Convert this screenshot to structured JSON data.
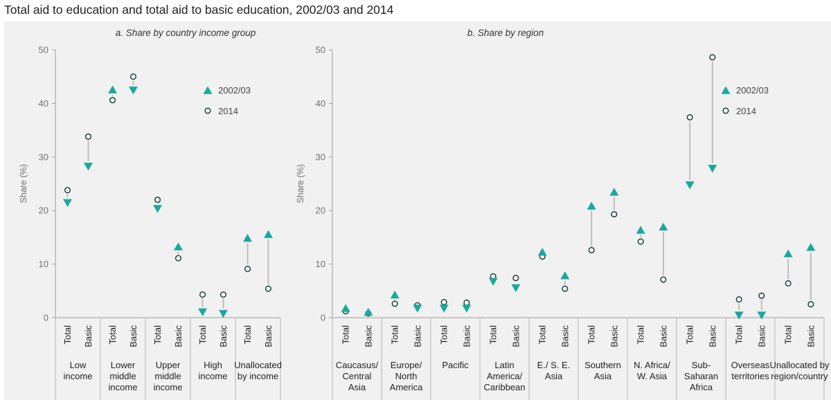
{
  "title": "Total aid to education and total aid to basic education, 2002/03 and 2014",
  "colors": {
    "triangle": "#1aa99c",
    "circle_stroke": "#1c3c3c",
    "arrow": "#bdbdbd",
    "background": "#f1f1f1"
  },
  "chart_data": [
    {
      "type": "scatter",
      "title": "a. Share by country income group",
      "ylabel": "Share (%)",
      "ylim": [
        0,
        50
      ],
      "yticks": [
        0,
        10,
        20,
        30,
        40,
        50
      ],
      "grid": false,
      "legend_placement": "top-right",
      "series": [
        {
          "name": "2002/03",
          "marker": "triangle"
        },
        {
          "name": "2014",
          "marker": "circle"
        }
      ],
      "groups": [
        {
          "label_lines": [
            "Low",
            "income"
          ],
          "categories": [
            {
              "label": "Total",
              "v2002": 21.5,
              "v2014": 23.8
            },
            {
              "label": "Basic",
              "v2002": 28.3,
              "v2014": 33.8
            }
          ]
        },
        {
          "label_lines": [
            "Lower",
            "middle",
            "income"
          ],
          "categories": [
            {
              "label": "Total",
              "v2002": 42.5,
              "v2014": 40.6
            },
            {
              "label": "Basic",
              "v2002": 42.5,
              "v2014": 45.0
            }
          ]
        },
        {
          "label_lines": [
            "Upper",
            "middle",
            "income"
          ],
          "categories": [
            {
              "label": "Total",
              "v2002": 20.4,
              "v2014": 22.0
            },
            {
              "label": "Basic",
              "v2002": 13.2,
              "v2014": 11.1
            }
          ]
        },
        {
          "label_lines": [
            "High",
            "income"
          ],
          "categories": [
            {
              "label": "Total",
              "v2002": 1.1,
              "v2014": 4.3
            },
            {
              "label": "Basic",
              "v2002": 0.8,
              "v2014": 4.3
            }
          ]
        },
        {
          "label_lines": [
            "Unallocated",
            "by income"
          ],
          "categories": [
            {
              "label": "Total",
              "v2002": 14.8,
              "v2014": 9.1
            },
            {
              "label": "Basic",
              "v2002": 15.5,
              "v2014": 5.4
            }
          ]
        }
      ]
    },
    {
      "type": "scatter",
      "title": "b. Share by region",
      "ylabel": "Share (%)",
      "ylim": [
        0,
        50
      ],
      "yticks": [
        0,
        10,
        20,
        30,
        40,
        50
      ],
      "grid": false,
      "legend_placement": "top-right",
      "series": [
        {
          "name": "2002/03",
          "marker": "triangle"
        },
        {
          "name": "2014",
          "marker": "circle"
        }
      ],
      "groups": [
        {
          "label_lines": [
            "Caucasus/",
            "Central",
            "Asia"
          ],
          "categories": [
            {
              "label": "Total",
              "v2002": 1.7,
              "v2014": 1.2
            },
            {
              "label": "Basic",
              "v2002": 1.0,
              "v2014": 0.8
            }
          ]
        },
        {
          "label_lines": [
            "Europe/",
            "North",
            "America"
          ],
          "categories": [
            {
              "label": "Total",
              "v2002": 4.2,
              "v2014": 2.6
            },
            {
              "label": "Basic",
              "v2002": 1.8,
              "v2014": 2.3
            }
          ]
        },
        {
          "label_lines": [
            "Pacific"
          ],
          "categories": [
            {
              "label": "Total",
              "v2002": 1.8,
              "v2014": 2.9
            },
            {
              "label": "Basic",
              "v2002": 1.8,
              "v2014": 2.8
            }
          ]
        },
        {
          "label_lines": [
            "Latin",
            "America/",
            "Caribbean"
          ],
          "categories": [
            {
              "label": "Total",
              "v2002": 6.8,
              "v2014": 7.7
            },
            {
              "label": "Basic",
              "v2002": 5.6,
              "v2014": 7.4
            }
          ]
        },
        {
          "label_lines": [
            "E./ S. E.",
            "Asia"
          ],
          "categories": [
            {
              "label": "Total",
              "v2002": 12.2,
              "v2014": 11.4
            },
            {
              "label": "Basic",
              "v2002": 7.8,
              "v2014": 5.4
            }
          ]
        },
        {
          "label_lines": [
            "Southern",
            "Asia"
          ],
          "categories": [
            {
              "label": "Total",
              "v2002": 20.8,
              "v2014": 12.6
            },
            {
              "label": "Basic",
              "v2002": 23.4,
              "v2014": 19.3
            }
          ]
        },
        {
          "label_lines": [
            "N. Africa/",
            "W. Asia"
          ],
          "categories": [
            {
              "label": "Total",
              "v2002": 16.3,
              "v2014": 14.2
            },
            {
              "label": "Basic",
              "v2002": 16.9,
              "v2014": 7.1
            }
          ]
        },
        {
          "label_lines": [
            "Sub-",
            "Saharan",
            "Africa"
          ],
          "categories": [
            {
              "label": "Total",
              "v2002": 24.8,
              "v2014": 37.4
            },
            {
              "label": "Basic",
              "v2002": 27.9,
              "v2014": 48.6
            }
          ]
        },
        {
          "label_lines": [
            "Overseas",
            "territories"
          ],
          "categories": [
            {
              "label": "Total",
              "v2002": 0.5,
              "v2014": 3.4
            },
            {
              "label": "Basic",
              "v2002": 0.5,
              "v2014": 4.1
            }
          ]
        },
        {
          "label_lines": [
            "Unallocated by",
            "region/country"
          ],
          "categories": [
            {
              "label": "Total",
              "v2002": 11.9,
              "v2014": 6.4
            },
            {
              "label": "Basic",
              "v2002": 13.1,
              "v2014": 2.5
            }
          ]
        }
      ]
    }
  ]
}
